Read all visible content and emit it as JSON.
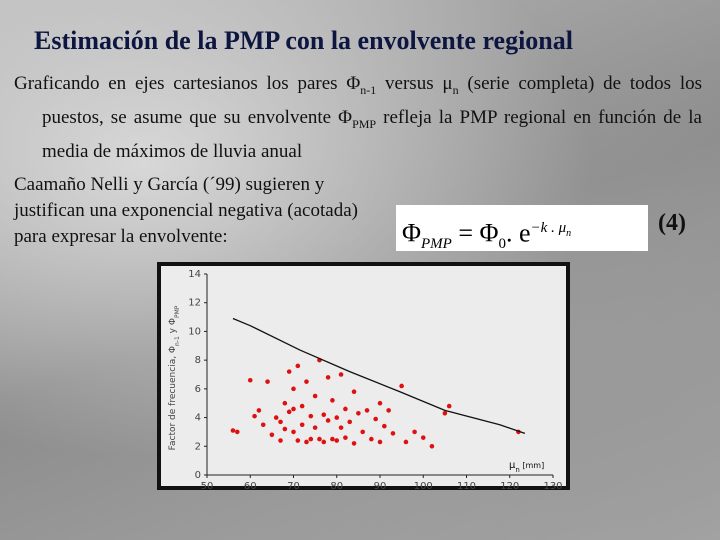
{
  "title": "Estimación de la PMP con la envolvente regional",
  "intro": [
    "Graficando en ejes cartesianos los pares Φ",
    "n-1",
    " versus μ",
    "n",
    " (serie completa) de todos los puestos, se asume que su envolvente Φ",
    "PMP",
    " refleja la PMP regional en función de la media de máximos de lluvia anual"
  ],
  "proposal": "Caamaño Nelli y García (´99) sugieren y justifican una exponencial negativa (acotada) para expresar la envolvente:",
  "formula": [
    "Φ",
    "PMP",
    "= Φ",
    "0",
    ". e",
    "−k . μ",
    "n"
  ],
  "equation_number": "(4)",
  "chart_data": {
    "type": "scatter",
    "y_label": [
      "Factor de frecuencia, Φ",
      "n-1",
      " y Φ",
      "PMP"
    ],
    "x_label": [
      "μ",
      "n",
      " [mm]"
    ],
    "xlim": [
      50,
      130
    ],
    "xticks": [
      50,
      60,
      70,
      80,
      90,
      100,
      110,
      120,
      130
    ],
    "ylim": [
      0,
      14
    ],
    "yticks": [
      0,
      2,
      4,
      6,
      8,
      10,
      12,
      14
    ],
    "series": [
      {
        "style": "markers",
        "color": "#e01010",
        "x": [
          56,
          57,
          60,
          61,
          62,
          63,
          64,
          65,
          66,
          67,
          67,
          68,
          68,
          69,
          69,
          70,
          70,
          70,
          71,
          71,
          72,
          72,
          73,
          73,
          74,
          74,
          75,
          75,
          76,
          76,
          77,
          77,
          78,
          78,
          79,
          79,
          80,
          80,
          81,
          81,
          82,
          82,
          83,
          84,
          84,
          85,
          86,
          87,
          88,
          89,
          90,
          90,
          91,
          92,
          93,
          95,
          96,
          98,
          100,
          102,
          105,
          106,
          122
        ],
        "values": [
          3.1,
          3.0,
          6.6,
          4.1,
          4.5,
          3.5,
          6.5,
          2.8,
          4.0,
          3.7,
          2.4,
          3.2,
          5.0,
          4.4,
          7.2,
          4.6,
          3.0,
          6.0,
          2.4,
          7.6,
          4.8,
          3.5,
          2.3,
          6.5,
          2.5,
          4.1,
          5.5,
          3.3,
          2.5,
          8.0,
          4.2,
          2.3,
          3.8,
          6.8,
          2.5,
          5.2,
          4.0,
          2.4,
          3.3,
          7.0,
          4.6,
          2.6,
          3.7,
          5.8,
          2.2,
          4.3,
          3.0,
          4.5,
          2.5,
          3.9,
          5.0,
          2.3,
          3.4,
          4.5,
          2.9,
          6.2,
          2.3,
          3.0,
          2.6,
          2.0,
          4.3,
          4.8,
          3.0
        ]
      },
      {
        "style": "line",
        "color": "#111111",
        "x": [
          56,
          60,
          71.5,
          83,
          94.6,
          105,
          117.7,
          123.5
        ],
        "values": [
          10.9,
          10.4,
          8.7,
          7.2,
          5.8,
          4.5,
          3.5,
          2.9
        ]
      }
    ]
  }
}
